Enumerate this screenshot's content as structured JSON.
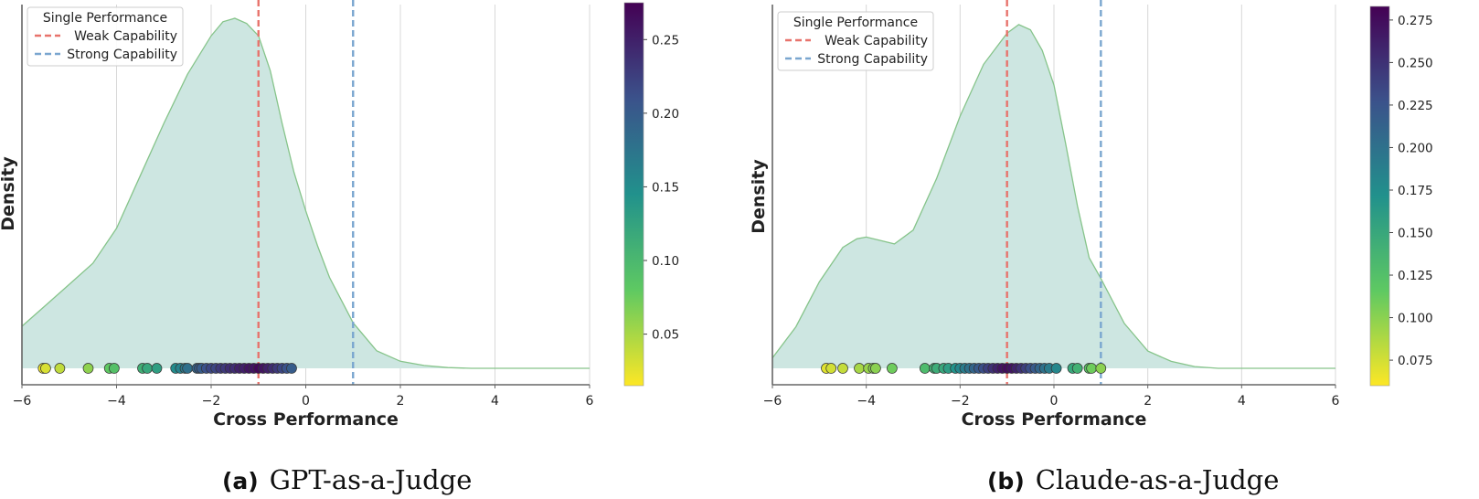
{
  "chart_data": [
    {
      "type": "area",
      "subtitle_tag": "(a)",
      "subtitle": "GPT-as-a-Judge",
      "xlabel": "Cross Performance",
      "ylabel": "Density",
      "xlim": [
        -6,
        6
      ],
      "xticks": [
        -6,
        -4,
        -2,
        0,
        2,
        4,
        6
      ],
      "xtick_labels": [
        "−6",
        "−4",
        "−2",
        "0",
        "2",
        "4",
        "6"
      ],
      "grid": true,
      "legend": {
        "title": "Single Performance",
        "position": "top-left",
        "entries": [
          {
            "label": "Weak Capability",
            "color": "#e8736c",
            "style": "dashed",
            "x": -1
          },
          {
            "label": "Strong Capability",
            "color": "#7aa6cf",
            "style": "dashed",
            "x": 1
          }
        ]
      },
      "density": {
        "fill": "#cde6e1",
        "stroke": "#86c48a",
        "x": [
          -6,
          -5.5,
          -5,
          -4.5,
          -4,
          -3.5,
          -3,
          -2.5,
          -2,
          -1.75,
          -1.5,
          -1.25,
          -1,
          -0.75,
          -0.5,
          -0.25,
          0,
          0.25,
          0.5,
          1,
          1.5,
          2,
          2.5,
          3,
          3.5,
          4,
          5,
          6
        ],
        "y": [
          0.12,
          0.18,
          0.24,
          0.3,
          0.4,
          0.55,
          0.7,
          0.84,
          0.95,
          0.99,
          1.0,
          0.985,
          0.95,
          0.85,
          0.7,
          0.56,
          0.45,
          0.35,
          0.26,
          0.13,
          0.05,
          0.02,
          0.008,
          0.002,
          0.0,
          0.0,
          0.0,
          0.0
        ]
      },
      "points": {
        "x": [
          -5.55,
          -5.5,
          -5.2,
          -4.6,
          -4.15,
          -4.05,
          -3.45,
          -3.35,
          -3.15,
          -2.75,
          -2.65,
          -2.55,
          -2.5,
          -2.3,
          -2.25,
          -2.2,
          -2.1,
          -2.0,
          -1.9,
          -1.8,
          -1.7,
          -1.6,
          -1.5,
          -1.4,
          -1.3,
          -1.2,
          -1.1,
          -1.0,
          -0.9,
          -0.8,
          -0.7,
          -0.6,
          -0.5,
          -0.4,
          -0.3
        ],
        "value": [
          0.02,
          0.03,
          0.04,
          0.06,
          0.08,
          0.09,
          0.11,
          0.12,
          0.13,
          0.15,
          0.16,
          0.17,
          0.18,
          0.19,
          0.2,
          0.2,
          0.21,
          0.22,
          0.22,
          0.23,
          0.23,
          0.24,
          0.24,
          0.25,
          0.25,
          0.26,
          0.26,
          0.27,
          0.26,
          0.25,
          0.24,
          0.23,
          0.22,
          0.21,
          0.2
        ]
      },
      "colorbar": {
        "min": 0.015,
        "max": 0.275,
        "ticks": [
          0.05,
          0.1,
          0.15,
          0.2,
          0.25
        ],
        "tick_labels": [
          "0.05",
          "0.10",
          "0.15",
          "0.20",
          "0.25"
        ],
        "colormap": "viridis"
      }
    },
    {
      "type": "area",
      "subtitle_tag": "(b)",
      "subtitle": "Claude-as-a-Judge",
      "xlabel": "Cross Performance",
      "ylabel": "Density",
      "xlim": [
        -6,
        6
      ],
      "xticks": [
        -6,
        -4,
        -2,
        0,
        2,
        4,
        6
      ],
      "xtick_labels": [
        "−6",
        "−4",
        "−2",
        "0",
        "2",
        "4",
        "6"
      ],
      "grid": true,
      "legend": {
        "title": "Single Performance",
        "position": "top-left",
        "entries": [
          {
            "label": "Weak Capability",
            "color": "#e8736c",
            "style": "dashed",
            "x": -1
          },
          {
            "label": "Strong Capability",
            "color": "#7aa6cf",
            "style": "dashed",
            "x": 1
          }
        ]
      },
      "density": {
        "fill": "#cde6e1",
        "stroke": "#86c48a",
        "x": [
          -6,
          -5.5,
          -5,
          -4.5,
          -4.2,
          -4.0,
          -3.7,
          -3.4,
          -3.0,
          -2.5,
          -2.0,
          -1.5,
          -1.0,
          -0.75,
          -0.5,
          -0.25,
          0,
          0.25,
          0.5,
          0.75,
          1.0,
          1.5,
          2,
          2.5,
          3,
          3.5,
          4,
          5,
          6
        ],
        "y": [
          0.03,
          0.12,
          0.25,
          0.35,
          0.375,
          0.38,
          0.37,
          0.36,
          0.4,
          0.55,
          0.73,
          0.88,
          0.97,
          0.995,
          0.98,
          0.92,
          0.82,
          0.65,
          0.47,
          0.32,
          0.26,
          0.13,
          0.05,
          0.02,
          0.005,
          0.0,
          0.0,
          0.0,
          0.0
        ]
      },
      "points": {
        "x": [
          -4.85,
          -4.75,
          -4.5,
          -4.15,
          -3.95,
          -3.85,
          -3.8,
          -3.45,
          -2.75,
          -2.55,
          -2.5,
          -2.35,
          -2.25,
          -2.1,
          -2.0,
          -1.9,
          -1.8,
          -1.7,
          -1.6,
          -1.5,
          -1.4,
          -1.3,
          -1.2,
          -1.1,
          -1.0,
          -0.9,
          -0.8,
          -0.7,
          -0.6,
          -0.5,
          -0.4,
          -0.3,
          -0.2,
          -0.1,
          0.05,
          0.4,
          0.5,
          0.75,
          0.8,
          1.0
        ],
        "value": [
          0.07,
          0.075,
          0.08,
          0.09,
          0.095,
          0.1,
          0.1,
          0.11,
          0.13,
          0.14,
          0.145,
          0.15,
          0.16,
          0.17,
          0.18,
          0.19,
          0.2,
          0.21,
          0.22,
          0.23,
          0.24,
          0.25,
          0.26,
          0.27,
          0.275,
          0.27,
          0.26,
          0.25,
          0.24,
          0.23,
          0.22,
          0.21,
          0.2,
          0.19,
          0.18,
          0.15,
          0.14,
          0.12,
          0.11,
          0.1
        ]
      },
      "colorbar": {
        "min": 0.06,
        "max": 0.283,
        "ticks": [
          0.075,
          0.1,
          0.125,
          0.15,
          0.175,
          0.2,
          0.225,
          0.25,
          0.275
        ],
        "tick_labels": [
          "0.075",
          "0.100",
          "0.125",
          "0.150",
          "0.175",
          "0.200",
          "0.225",
          "0.250",
          "0.275"
        ],
        "colormap": "viridis"
      }
    }
  ]
}
